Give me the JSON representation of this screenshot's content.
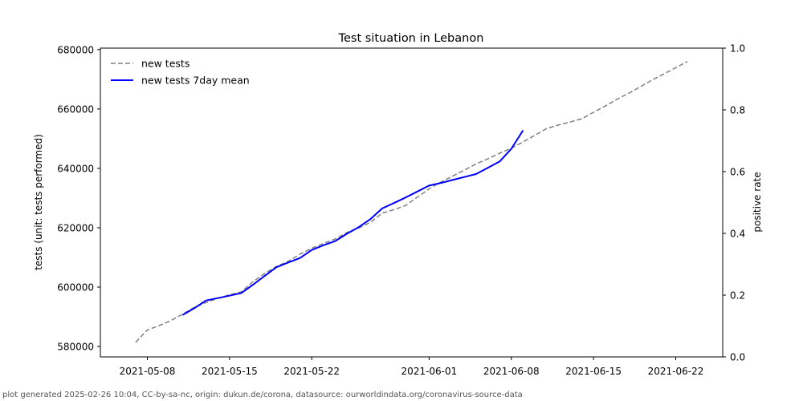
{
  "chart_data": {
    "type": "line",
    "title": "Test situation in Lebanon",
    "ylabel": "tests (unit: tests performed)",
    "y2label": "positive rate",
    "ylim": [
      576500,
      680500
    ],
    "y2lim": [
      0.0,
      1.0
    ],
    "xlim": [
      "2021-05-04",
      "2021-06-26"
    ],
    "x_ticks": [
      "2021-05-08",
      "2021-05-15",
      "2021-05-22",
      "2021-06-01",
      "2021-06-08",
      "2021-06-15",
      "2021-06-22"
    ],
    "y_ticks": [
      "580000",
      "600000",
      "620000",
      "640000",
      "660000",
      "680000"
    ],
    "y2_ticks": [
      "0.0",
      "0.2",
      "0.4",
      "0.6",
      "0.8",
      "1.0"
    ],
    "legend_position": "top-left",
    "grid": false,
    "series": [
      {
        "name": "new tests",
        "color": "#808080",
        "style": "dashed",
        "points": [
          [
            "2021-05-07",
            581400
          ],
          [
            "2021-05-08",
            585600
          ],
          [
            "2021-05-09",
            587000
          ],
          [
            "2021-05-10",
            588700
          ],
          [
            "2021-05-11",
            590900
          ],
          [
            "2021-05-12",
            593200
          ],
          [
            "2021-05-13",
            594800
          ],
          [
            "2021-05-14",
            596200
          ],
          [
            "2021-05-15",
            597400
          ],
          [
            "2021-05-16",
            598400
          ],
          [
            "2021-05-17",
            601800
          ],
          [
            "2021-05-18",
            604600
          ],
          [
            "2021-05-19",
            607000
          ],
          [
            "2021-05-20",
            608700
          ],
          [
            "2021-05-21",
            611100
          ],
          [
            "2021-05-22",
            613100
          ],
          [
            "2021-05-23",
            614700
          ],
          [
            "2021-05-24",
            616200
          ],
          [
            "2021-05-25",
            618400
          ],
          [
            "2021-05-26",
            619900
          ],
          [
            "2021-05-27",
            621800
          ],
          [
            "2021-05-28",
            624900
          ],
          [
            "2021-05-29",
            626100
          ],
          [
            "2021-05-30",
            627500
          ],
          [
            "2021-05-31",
            630300
          ],
          [
            "2021-06-01",
            633100
          ],
          [
            "2021-06-02",
            635400
          ],
          [
            "2021-06-03",
            637400
          ],
          [
            "2021-06-04",
            639400
          ],
          [
            "2021-06-05",
            641500
          ],
          [
            "2021-06-06",
            643200
          ],
          [
            "2021-06-07",
            645100
          ],
          [
            "2021-06-08",
            646800
          ],
          [
            "2021-06-09",
            648900
          ],
          [
            "2021-06-10",
            651100
          ],
          [
            "2021-06-11",
            653400
          ],
          [
            "2021-06-12",
            654600
          ],
          [
            "2021-06-13",
            655600
          ],
          [
            "2021-06-14",
            656700
          ],
          [
            "2021-06-15",
            658900
          ],
          [
            "2021-06-16",
            661000
          ],
          [
            "2021-06-17",
            663300
          ],
          [
            "2021-06-18",
            665300
          ],
          [
            "2021-06-19",
            667500
          ],
          [
            "2021-06-20",
            669800
          ],
          [
            "2021-06-21",
            671800
          ],
          [
            "2021-06-22",
            673900
          ],
          [
            "2021-06-23",
            676000
          ]
        ]
      },
      {
        "name": "new tests 7day mean",
        "color": "#0000ff",
        "style": "solid",
        "points": [
          [
            "2021-05-11",
            590600
          ],
          [
            "2021-05-12",
            592900
          ],
          [
            "2021-05-13",
            595500
          ],
          [
            "2021-05-14",
            596300
          ],
          [
            "2021-05-15",
            597100
          ],
          [
            "2021-05-16",
            598000
          ],
          [
            "2021-05-17",
            600800
          ],
          [
            "2021-05-18",
            603800
          ],
          [
            "2021-05-19",
            606700
          ],
          [
            "2021-05-20",
            608300
          ],
          [
            "2021-05-21",
            609800
          ],
          [
            "2021-05-22",
            612500
          ],
          [
            "2021-05-23",
            614100
          ],
          [
            "2021-05-24",
            615500
          ],
          [
            "2021-05-25",
            618000
          ],
          [
            "2021-05-26",
            620200
          ],
          [
            "2021-05-27",
            622900
          ],
          [
            "2021-05-28",
            626500
          ],
          [
            "2021-05-29",
            628300
          ],
          [
            "2021-05-30",
            630200
          ],
          [
            "2021-05-31",
            632200
          ],
          [
            "2021-06-01",
            634200
          ],
          [
            "2021-06-02",
            635100
          ],
          [
            "2021-06-03",
            636100
          ],
          [
            "2021-06-04",
            637100
          ],
          [
            "2021-06-05",
            638100
          ],
          [
            "2021-06-06",
            640200
          ],
          [
            "2021-06-07",
            642300
          ],
          [
            "2021-06-08",
            646600
          ],
          [
            "2021-06-09",
            652800
          ]
        ]
      }
    ]
  },
  "footer": "plot generated 2025-02-26 10:04, CC-by-sa-nc, origin: dukun.de/corona, datasource: ourworldindata.org/coronavirus-source-data"
}
